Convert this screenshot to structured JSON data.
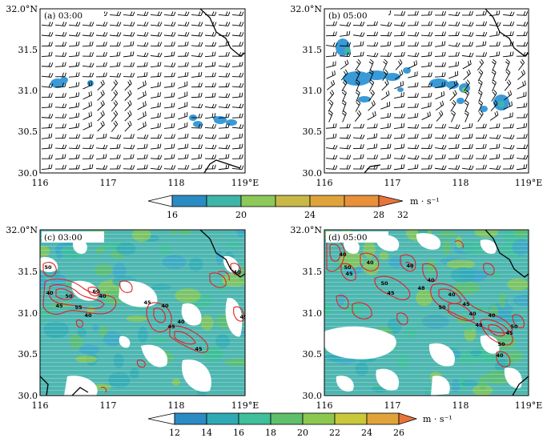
{
  "panels": [
    {
      "id": "a",
      "label": "(a)  03:00",
      "type": "wind"
    },
    {
      "id": "b",
      "label": "(b)  05:00",
      "type": "wind"
    },
    {
      "id": "c",
      "label": "(c)  03:00",
      "type": "reflectivity"
    },
    {
      "id": "d",
      "label": "(d)  05:00",
      "type": "reflectivity"
    }
  ],
  "axes": {
    "x_ticks": [
      "116",
      "117",
      "118",
      "119°E"
    ],
    "y_ticks": [
      "32.0°N",
      "31.5",
      "31.0",
      "30.5",
      "30.0"
    ],
    "x_range": [
      116,
      119
    ],
    "y_range": [
      30.0,
      32.0
    ]
  },
  "colorbar_top": {
    "ticks": [
      "16",
      "20",
      "24",
      "28",
      "32"
    ],
    "unit": "m · s⁻¹",
    "colors": [
      "#2b8cc4",
      "#3fb5a8",
      "#8cc85a",
      "#e0a33c",
      "#e8743a"
    ]
  },
  "colorbar_bottom": {
    "ticks": [
      "12",
      "14",
      "16",
      "18",
      "20",
      "22",
      "24",
      "26"
    ],
    "unit": "m · s⁻¹",
    "colors": [
      "#2b8cc4",
      "#2faab5",
      "#3fbf9a",
      "#5fbf6a",
      "#8cc850",
      "#c8c83a",
      "#e0a33c",
      "#e8743a"
    ]
  },
  "contour_labels": {
    "c": [
      "50",
      "40",
      "45",
      "55",
      "60",
      "40",
      "50",
      "40",
      "45",
      "40",
      "40",
      "45",
      "40",
      "45",
      "45"
    ],
    "d": [
      "50",
      "40",
      "45",
      "40",
      "50",
      "45",
      "40",
      "48",
      "50",
      "40",
      "45",
      "40",
      "40",
      "45",
      "50",
      "40",
      "45",
      "50",
      "40"
    ]
  },
  "colors": {
    "wind_fill": "#3a9ad8",
    "refl_base": "#4db6b0",
    "contour": "#e02020",
    "barb": "#000000"
  }
}
